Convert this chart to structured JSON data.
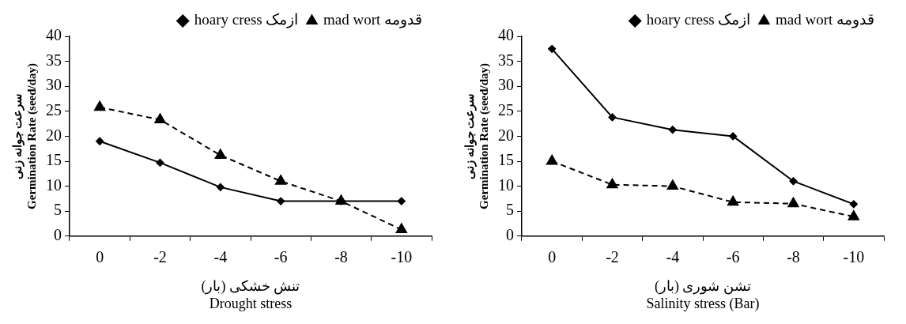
{
  "chart_data": [
    {
      "type": "line",
      "xlabel": "تنش خشکی (بار)\nDrought stress",
      "ylabel": "سرعت جوانه زنی\nGermination Rate (seed/day)",
      "categories": [
        "0",
        "-2",
        "-4",
        "-6",
        "-8",
        "-10"
      ],
      "ylim": [
        0,
        40
      ],
      "yticks": [
        0,
        5,
        10,
        15,
        20,
        25,
        30,
        35,
        40
      ],
      "legend": "top right",
      "grid": false,
      "series": [
        {
          "name": "hoary cress ازمک",
          "color": "#000000",
          "marker": "diamond",
          "line_style": "solid",
          "values": [
            19,
            14.7,
            9.8,
            7,
            7,
            7
          ]
        },
        {
          "name": "mad wort قدومه",
          "color": "#000000",
          "marker": "triangle",
          "line_style": "dashed",
          "values": [
            25.8,
            23.3,
            16.2,
            11,
            7,
            1.3
          ]
        }
      ]
    },
    {
      "type": "line",
      "xlabel": "تشن شوری (بار)\nSalinity stress (Bar)",
      "ylabel": "سرعت جوانه زنی\nGermination Rate (seed/day)",
      "categories": [
        "0",
        "-2",
        "-4",
        "-6",
        "-8",
        "-10"
      ],
      "ylim": [
        0,
        40
      ],
      "yticks": [
        0,
        5,
        10,
        15,
        20,
        25,
        30,
        35,
        40
      ],
      "legend": "top right",
      "grid": false,
      "series": [
        {
          "name": "hoary cress ازمک",
          "color": "#000000",
          "marker": "diamond",
          "line_style": "solid",
          "values": [
            37.5,
            23.8,
            21.3,
            20,
            11,
            6.4
          ]
        },
        {
          "name": "mad wort قدومه",
          "color": "#000000",
          "marker": "triangle",
          "line_style": "dashed",
          "values": [
            15,
            10.3,
            10,
            6.8,
            6.5,
            3.9
          ]
        }
      ]
    }
  ]
}
